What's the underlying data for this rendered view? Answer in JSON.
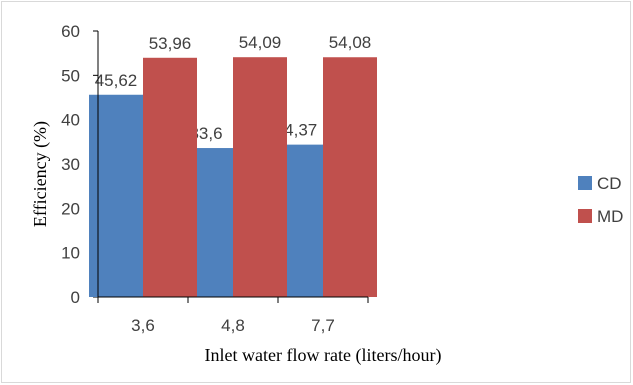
{
  "chart_data": {
    "type": "bar",
    "title": "",
    "xlabel": "Inlet water flow rate (liters/hour)",
    "ylabel": "Efficiency (%)",
    "categories": [
      "3,6",
      "4,8",
      "7,7"
    ],
    "series": [
      {
        "name": "CD",
        "values": [
          45.62,
          33.6,
          34.37
        ],
        "labels": [
          "45,62",
          "33,6",
          "34,37"
        ],
        "color": "#4f81bd"
      },
      {
        "name": "MD",
        "values": [
          53.96,
          54.09,
          54.08
        ],
        "labels": [
          "53,96",
          "54,09",
          "54,08"
        ],
        "color": "#c0504d"
      }
    ],
    "ylim": [
      0,
      60
    ],
    "yticks": [
      "0",
      "10",
      "20",
      "30",
      "40",
      "50",
      "60"
    ],
    "grid": false,
    "legend": "right"
  }
}
